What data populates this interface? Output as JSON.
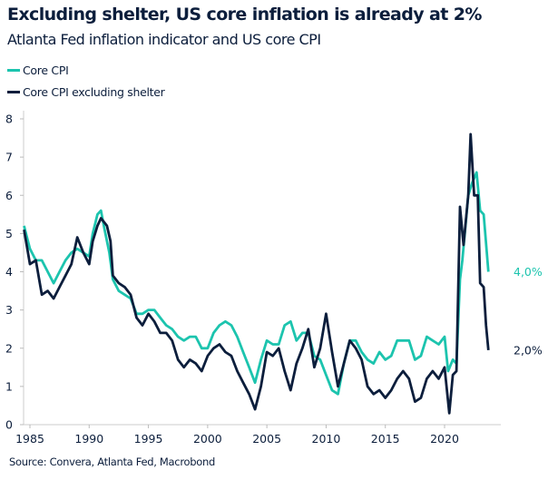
{
  "chart_data": {
    "type": "line",
    "title": "Excluding shelter, US core inflation is already at 2%",
    "subtitle": "Atlanta Fed inflation indicator and US core CPI",
    "source": "Source: Convera, Atlanta Fed, Macrobond",
    "xlim": [
      1984.5,
      2024.5
    ],
    "ylim": [
      0,
      8
    ],
    "x_ticks": [
      1985,
      1990,
      1995,
      2000,
      2005,
      2010,
      2015,
      2020
    ],
    "x_tick_labels": [
      "1985",
      "1990",
      "1995",
      "2000",
      "2005",
      "2010",
      "2015",
      "2020"
    ],
    "y_ticks": [
      0,
      1,
      2,
      3,
      4,
      5,
      6,
      7,
      8
    ],
    "y_tick_labels": [
      "0",
      "1",
      "2",
      "3",
      "4",
      "5",
      "6",
      "7",
      "8"
    ],
    "grid": false,
    "legend_position": "top-left",
    "series": [
      {
        "name": "Core CPI",
        "color": "#1cc4ae",
        "end_label": "4,0%",
        "x": [
          1984.5,
          1985,
          1985.5,
          1986,
          1986.5,
          1987,
          1987.5,
          1988,
          1988.5,
          1989,
          1989.5,
          1990,
          1990.3,
          1990.7,
          1991,
          1991.3,
          1991.7,
          1992,
          1992.5,
          1993,
          1993.5,
          1994,
          1994.5,
          1995,
          1995.5,
          1996,
          1996.5,
          1997,
          1997.5,
          1998,
          1998.5,
          1999,
          1999.5,
          2000,
          2000.5,
          2001,
          2001.5,
          2002,
          2002.5,
          2003,
          2003.5,
          2004,
          2004.5,
          2005,
          2005.5,
          2006,
          2006.5,
          2007,
          2007.5,
          2008,
          2008.5,
          2009,
          2009.5,
          2010,
          2010.5,
          2011,
          2011.5,
          2012,
          2012.5,
          2013,
          2013.5,
          2014,
          2014.5,
          2015,
          2015.5,
          2016,
          2016.5,
          2017,
          2017.5,
          2018,
          2018.5,
          2019,
          2019.5,
          2020,
          2020.3,
          2020.7,
          2021,
          2021.3,
          2021.5,
          2022,
          2022.3,
          2022.7,
          2023,
          2023.3,
          2023.7
        ],
        "y": [
          5.2,
          4.6,
          4.3,
          4.3,
          4.0,
          3.7,
          4.0,
          4.3,
          4.5,
          4.6,
          4.5,
          4.4,
          5.0,
          5.5,
          5.6,
          5.1,
          4.5,
          3.8,
          3.5,
          3.4,
          3.3,
          2.9,
          2.9,
          3.0,
          3.0,
          2.8,
          2.6,
          2.5,
          2.3,
          2.2,
          2.3,
          2.3,
          2.0,
          2.0,
          2.4,
          2.6,
          2.7,
          2.6,
          2.3,
          1.9,
          1.5,
          1.1,
          1.7,
          2.2,
          2.1,
          2.1,
          2.6,
          2.7,
          2.2,
          2.4,
          2.4,
          1.8,
          1.7,
          1.3,
          0.9,
          0.8,
          1.6,
          2.2,
          2.2,
          1.9,
          1.7,
          1.6,
          1.9,
          1.7,
          1.8,
          2.2,
          2.2,
          2.2,
          1.7,
          1.8,
          2.3,
          2.2,
          2.1,
          2.3,
          1.4,
          1.7,
          1.6,
          3.8,
          4.3,
          6.0,
          6.3,
          6.6,
          5.6,
          5.5,
          4.0
        ]
      },
      {
        "name": "Core CPI excluding shelter",
        "color": "#0c1e3c",
        "end_label": "2,0%",
        "x": [
          1984.5,
          1985,
          1985.5,
          1986,
          1986.5,
          1987,
          1987.5,
          1988,
          1988.5,
          1989,
          1989.5,
          1990,
          1990.3,
          1990.7,
          1991,
          1991.5,
          1991.8,
          1992,
          1992.5,
          1993,
          1993.5,
          1994,
          1994.5,
          1995,
          1995.5,
          1996,
          1996.5,
          1997,
          1997.5,
          1998,
          1998.5,
          1999,
          1999.5,
          2000,
          2000.5,
          2001,
          2001.5,
          2002,
          2002.5,
          2003,
          2003.5,
          2004,
          2004.5,
          2005,
          2005.5,
          2006,
          2006.5,
          2007,
          2007.5,
          2008,
          2008.5,
          2009,
          2009.5,
          2010,
          2010.5,
          2011,
          2011.5,
          2012,
          2012.5,
          2013,
          2013.5,
          2014,
          2014.5,
          2015,
          2015.5,
          2016,
          2016.5,
          2017,
          2017.5,
          2018,
          2018.5,
          2019,
          2019.5,
          2020,
          2020.4,
          2020.7,
          2021,
          2021.3,
          2021.6,
          2022,
          2022.2,
          2022.5,
          2022.8,
          2023,
          2023.3,
          2023.5,
          2023.7
        ],
        "y": [
          5.1,
          4.2,
          4.3,
          3.4,
          3.5,
          3.3,
          3.6,
          3.9,
          4.2,
          4.9,
          4.5,
          4.2,
          4.8,
          5.2,
          5.4,
          5.2,
          4.8,
          3.9,
          3.7,
          3.6,
          3.4,
          2.8,
          2.6,
          2.9,
          2.7,
          2.4,
          2.4,
          2.2,
          1.7,
          1.5,
          1.7,
          1.6,
          1.4,
          1.8,
          2.0,
          2.1,
          1.9,
          1.8,
          1.4,
          1.1,
          0.8,
          0.4,
          1.0,
          1.9,
          1.8,
          2.0,
          1.4,
          0.9,
          1.6,
          2.0,
          2.5,
          1.5,
          2.0,
          2.9,
          1.9,
          1.0,
          1.6,
          2.2,
          2.0,
          1.7,
          1.0,
          0.8,
          0.9,
          0.7,
          0.9,
          1.2,
          1.4,
          1.2,
          0.6,
          0.7,
          1.2,
          1.4,
          1.2,
          1.5,
          0.3,
          1.3,
          1.4,
          5.7,
          4.7,
          6.0,
          7.6,
          6.0,
          6.0,
          3.7,
          3.6,
          2.6,
          1.95
        ]
      }
    ]
  }
}
